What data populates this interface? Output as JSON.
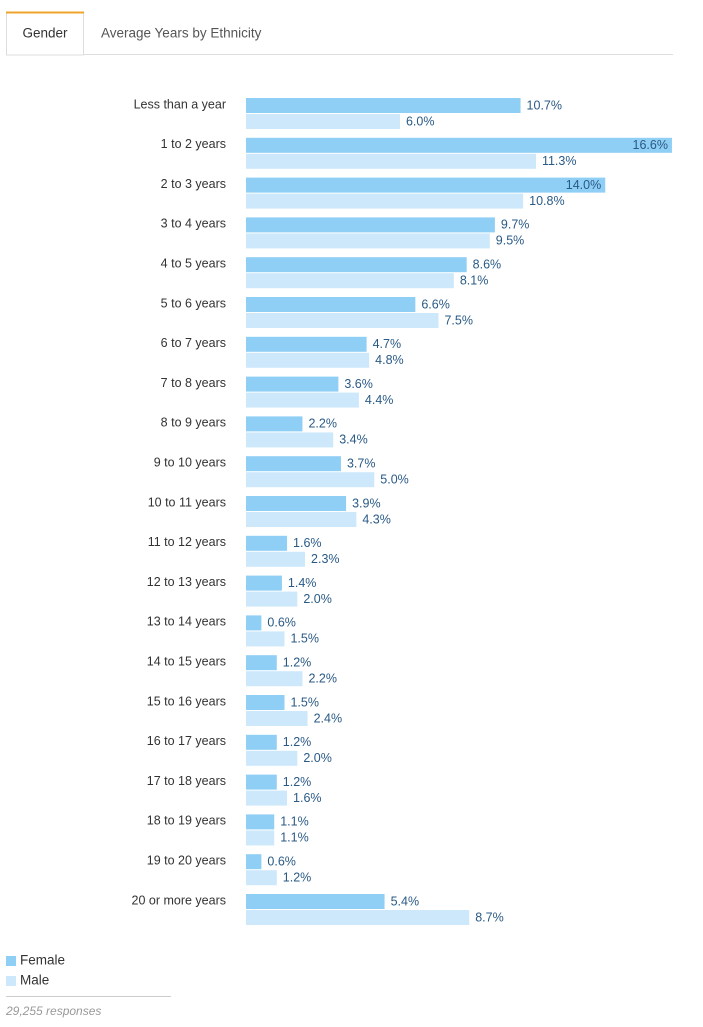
{
  "tabs": [
    "Gender",
    "Average Years by Ethnicity"
  ],
  "chart_data": {
    "type": "bar",
    "orientation": "horizontal",
    "categories": [
      "Less than a year",
      "1 to 2 years",
      "2 to 3 years",
      "3 to 4 years",
      "4 to 5 years",
      "5 to 6 years",
      "6 to 7 years",
      "7 to 8 years",
      "8 to 9 years",
      "9 to 10 years",
      "10 to 11 years",
      "11 to 12 years",
      "12 to 13 years",
      "13 to 14 years",
      "14 to 15 years",
      "15 to 16 years",
      "16 to 17 years",
      "17 to 18 years",
      "18 to 19 years",
      "19 to 20 years",
      "20 or more years"
    ],
    "series": [
      {
        "name": "Female",
        "color": "#8fcff5",
        "values": [
          10.7,
          16.6,
          14.0,
          9.7,
          8.6,
          6.6,
          4.7,
          3.6,
          2.2,
          3.7,
          3.9,
          1.6,
          1.4,
          0.6,
          1.2,
          1.5,
          1.2,
          1.2,
          1.1,
          0.6,
          5.4
        ],
        "value_labels": [
          "10.7%",
          "16.6%",
          "14.0%",
          "9.7%",
          "8.6%",
          "6.6%",
          "4.7%",
          "3.6%",
          "2.2%",
          "3.7%",
          "3.9%",
          "1.6%",
          "1.4%",
          "0.6%",
          "1.2%",
          "1.5%",
          "1.2%",
          "1.2%",
          "1.1%",
          "0.6%",
          "5.4%"
        ]
      },
      {
        "name": "Male",
        "color": "#cde8fb",
        "values": [
          6.0,
          11.3,
          10.8,
          9.5,
          8.1,
          7.5,
          4.8,
          4.4,
          3.4,
          5.0,
          4.3,
          2.3,
          2.0,
          1.5,
          2.2,
          2.4,
          2.0,
          1.6,
          1.1,
          1.2,
          8.7
        ],
        "value_labels": [
          "6.0%",
          "11.3%",
          "10.8%",
          "9.5%",
          "8.1%",
          "7.5%",
          "4.8%",
          "4.4%",
          "3.4%",
          "5.0%",
          "4.3%",
          "2.3%",
          "2.0%",
          "1.5%",
          "2.2%",
          "2.4%",
          "2.0%",
          "1.6%",
          "1.1%",
          "1.2%",
          "8.7%"
        ]
      }
    ],
    "legend": "bottom-left"
  },
  "footer": "29,255 responses"
}
